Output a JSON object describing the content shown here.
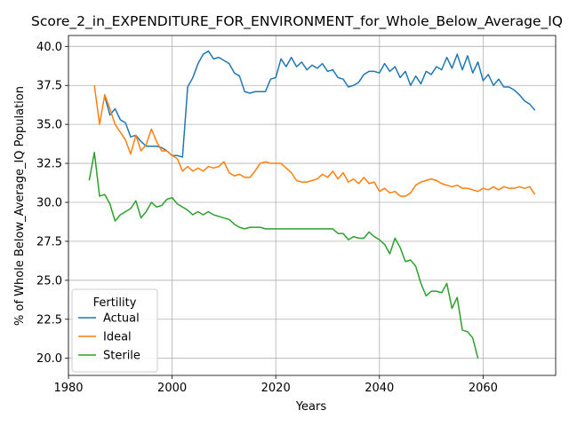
{
  "chart_data": {
    "type": "line",
    "title": "Score_2_in_EXPENDITURE_FOR_ENVIRONMENT_for_Whole_Below_Average_IQ",
    "xlabel": "Years",
    "ylabel": "% of Whole Below_Average_IQ Population",
    "xlim": [
      1980,
      2074
    ],
    "ylim": [
      18.9,
      40.7
    ],
    "xticks": [
      1980,
      2000,
      2020,
      2040,
      2060
    ],
    "yticks": [
      20.0,
      22.5,
      25.0,
      27.5,
      30.0,
      32.5,
      35.0,
      37.5,
      40.0
    ],
    "grid": true,
    "legend": {
      "title": "Fertility",
      "placement": "lower-left"
    },
    "series": [
      {
        "name": "Actual",
        "color": "#1f77b4",
        "x": [
          1987,
          1988,
          1989,
          1990,
          1991,
          1992,
          1993,
          1994,
          1995,
          1996,
          1997,
          1998,
          1999,
          2000,
          2001,
          2002,
          2003,
          2004,
          2005,
          2006,
          2007,
          2008,
          2009,
          2010,
          2011,
          2012,
          2013,
          2014,
          2015,
          2016,
          2017,
          2018,
          2019,
          2020,
          2021,
          2022,
          2023,
          2024,
          2025,
          2026,
          2027,
          2028,
          2029,
          2030,
          2031,
          2032,
          2033,
          2034,
          2035,
          2036,
          2037,
          2038,
          2039,
          2040,
          2041,
          2042,
          2043,
          2044,
          2045,
          2046,
          2047,
          2048,
          2049,
          2050,
          2051,
          2052,
          2053,
          2054,
          2055,
          2056,
          2057,
          2058,
          2059,
          2060,
          2061,
          2062,
          2063,
          2064,
          2065,
          2066,
          2067,
          2068,
          2069,
          2070
        ],
        "y": [
          36.8,
          35.6,
          36.0,
          35.3,
          35.1,
          34.2,
          34.3,
          33.9,
          33.6,
          33.6,
          33.6,
          33.5,
          33.3,
          33.0,
          33.0,
          32.9,
          37.4,
          38.0,
          38.9,
          39.5,
          39.7,
          39.2,
          39.3,
          39.1,
          38.9,
          38.3,
          38.1,
          37.1,
          37.0,
          37.1,
          37.1,
          37.1,
          37.9,
          38.0,
          39.2,
          38.7,
          39.3,
          38.7,
          39.0,
          38.5,
          38.8,
          38.6,
          38.9,
          38.4,
          38.5,
          38.0,
          37.9,
          37.4,
          37.5,
          37.7,
          38.2,
          38.4,
          38.4,
          38.3,
          38.9,
          38.4,
          38.7,
          38.0,
          38.4,
          37.5,
          38.1,
          37.6,
          38.4,
          38.2,
          38.7,
          38.5,
          39.3,
          38.6,
          39.5,
          38.5,
          39.4,
          38.3,
          39.0,
          37.8,
          38.2,
          37.5,
          37.9,
          37.4,
          37.4,
          37.2,
          36.9,
          36.5,
          36.3,
          35.9
        ]
      },
      {
        "name": "Ideal",
        "color": "#ff7f0e",
        "x": [
          1985,
          1986,
          1987,
          1988,
          1989,
          1990,
          1991,
          1992,
          1993,
          1994,
          1995,
          1996,
          1997,
          1998,
          1999,
          2000,
          2001,
          2002,
          2003,
          2004,
          2005,
          2006,
          2007,
          2008,
          2009,
          2010,
          2011,
          2012,
          2013,
          2014,
          2015,
          2016,
          2017,
          2018,
          2019,
          2020,
          2021,
          2022,
          2023,
          2024,
          2025,
          2026,
          2027,
          2028,
          2029,
          2030,
          2031,
          2032,
          2033,
          2034,
          2035,
          2036,
          2037,
          2038,
          2039,
          2040,
          2041,
          2042,
          2043,
          2044,
          2045,
          2046,
          2047,
          2048,
          2049,
          2050,
          2051,
          2052,
          2053,
          2054,
          2055,
          2056,
          2057,
          2058,
          2059,
          2060,
          2061,
          2062,
          2063,
          2064,
          2065,
          2066,
          2067,
          2068,
          2069,
          2070
        ],
        "y": [
          37.5,
          35.0,
          36.9,
          36.0,
          35.0,
          34.5,
          34.0,
          33.1,
          34.3,
          33.3,
          33.7,
          34.7,
          33.9,
          33.3,
          33.3,
          33.0,
          32.8,
          32.0,
          32.3,
          32.0,
          32.2,
          32.0,
          32.3,
          32.2,
          32.3,
          32.6,
          31.9,
          31.7,
          31.8,
          31.6,
          31.6,
          32.0,
          32.5,
          32.6,
          32.5,
          32.5,
          32.5,
          32.2,
          31.9,
          31.4,
          31.3,
          31.3,
          31.4,
          31.5,
          31.8,
          31.6,
          32.0,
          31.5,
          31.9,
          31.3,
          31.5,
          31.2,
          31.6,
          31.2,
          31.3,
          30.7,
          30.9,
          30.6,
          30.7,
          30.4,
          30.4,
          30.6,
          31.1,
          31.3,
          31.4,
          31.5,
          31.4,
          31.2,
          31.1,
          31.0,
          31.1,
          30.9,
          30.9,
          30.8,
          30.7,
          30.9,
          30.8,
          31.0,
          30.8,
          31.0,
          30.9,
          30.9,
          31.0,
          30.9,
          31.0,
          30.5
        ]
      },
      {
        "name": "Sterile",
        "color": "#2ca02c",
        "x": [
          1984,
          1985,
          1986,
          1987,
          1988,
          1989,
          1990,
          1991,
          1992,
          1993,
          1994,
          1995,
          1996,
          1997,
          1998,
          1999,
          2000,
          2001,
          2002,
          2003,
          2004,
          2005,
          2006,
          2007,
          2008,
          2009,
          2010,
          2011,
          2012,
          2013,
          2014,
          2015,
          2016,
          2017,
          2018,
          2019,
          2020,
          2021,
          2022,
          2023,
          2024,
          2025,
          2026,
          2027,
          2028,
          2029,
          2030,
          2031,
          2032,
          2033,
          2034,
          2035,
          2036,
          2037,
          2038,
          2039,
          2040,
          2041,
          2042,
          2043,
          2044,
          2045,
          2046,
          2047,
          2048,
          2049,
          2050,
          2051,
          2052,
          2053,
          2054,
          2055,
          2056,
          2057,
          2058,
          2059
        ],
        "y": [
          31.4,
          33.2,
          30.4,
          30.5,
          29.9,
          28.8,
          29.2,
          29.4,
          29.6,
          30.1,
          29.0,
          29.4,
          30.0,
          29.7,
          29.8,
          30.2,
          30.3,
          29.9,
          29.7,
          29.5,
          29.2,
          29.4,
          29.2,
          29.4,
          29.2,
          29.1,
          29.0,
          28.9,
          28.6,
          28.4,
          28.3,
          28.4,
          28.4,
          28.4,
          28.3,
          28.3,
          28.3,
          28.3,
          28.3,
          28.3,
          28.3,
          28.3,
          28.3,
          28.3,
          28.3,
          28.3,
          28.3,
          28.3,
          28.0,
          28.0,
          27.6,
          27.8,
          27.7,
          27.7,
          28.1,
          27.8,
          27.6,
          27.3,
          26.7,
          27.7,
          27.1,
          26.2,
          26.3,
          25.9,
          24.8,
          24.0,
          24.3,
          24.3,
          24.2,
          24.8,
          23.2,
          23.9,
          21.8,
          21.7,
          21.3,
          20.0
        ]
      }
    ]
  }
}
